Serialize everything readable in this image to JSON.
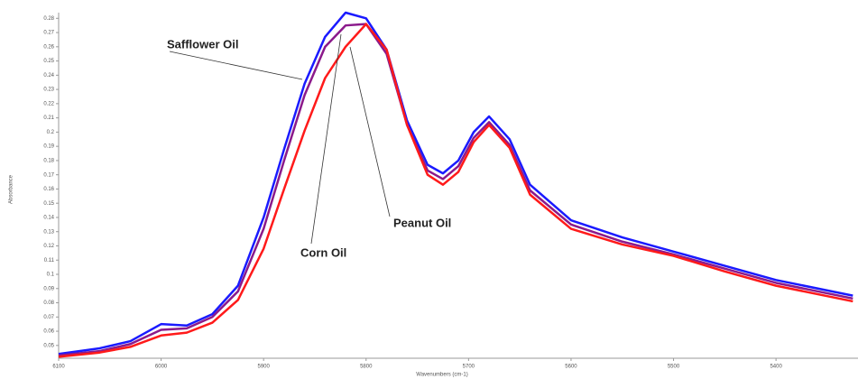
{
  "chart_data": {
    "type": "line",
    "xlabel": "Wavenumbers (cm-1)",
    "ylabel": "Absorbance",
    "x": [
      6100,
      6060,
      6030,
      6000,
      5975,
      5950,
      5925,
      5900,
      5880,
      5860,
      5840,
      5820,
      5800,
      5780,
      5760,
      5740,
      5725,
      5710,
      5695,
      5680,
      5660,
      5640,
      5600,
      5550,
      5500,
      5450,
      5400,
      5325
    ],
    "series": [
      {
        "name": "Safflower Oil",
        "color": "#1a1aff",
        "values": [
          0.044,
          0.048,
          0.053,
          0.065,
          0.064,
          0.072,
          0.092,
          0.14,
          0.188,
          0.234,
          0.267,
          0.284,
          0.28,
          0.258,
          0.208,
          0.177,
          0.171,
          0.18,
          0.2,
          0.211,
          0.195,
          0.163,
          0.138,
          0.126,
          0.116,
          0.106,
          0.096,
          0.085
        ]
      },
      {
        "name": "Corn Oil",
        "color": "#8b1a8b",
        "values": [
          0.043,
          0.046,
          0.051,
          0.061,
          0.062,
          0.07,
          0.088,
          0.132,
          0.18,
          0.226,
          0.26,
          0.275,
          0.276,
          0.255,
          0.205,
          0.173,
          0.167,
          0.176,
          0.196,
          0.207,
          0.191,
          0.159,
          0.135,
          0.123,
          0.114,
          0.104,
          0.094,
          0.083
        ]
      },
      {
        "name": "Peanut Oil",
        "color": "#ff1a1a",
        "values": [
          0.042,
          0.045,
          0.049,
          0.057,
          0.059,
          0.066,
          0.082,
          0.118,
          0.16,
          0.201,
          0.238,
          0.26,
          0.276,
          0.258,
          0.205,
          0.17,
          0.163,
          0.172,
          0.193,
          0.205,
          0.189,
          0.156,
          0.132,
          0.121,
          0.113,
          0.102,
          0.092,
          0.081
        ]
      }
    ],
    "xlim": [
      6100,
      5320
    ],
    "ylim": [
      0.041,
      0.284
    ],
    "xticks": [
      6100,
      6000,
      5900,
      5800,
      5700,
      5600,
      5500,
      5400
    ],
    "yticks": [
      0.05,
      0.06,
      0.07,
      0.08,
      0.09,
      0.1,
      0.11,
      0.12,
      0.13,
      0.14,
      0.15,
      0.16,
      0.17,
      0.18,
      0.19,
      0.2,
      0.21,
      0.22,
      0.23,
      0.24,
      0.25,
      0.26,
      0.27,
      0.28
    ]
  }
}
